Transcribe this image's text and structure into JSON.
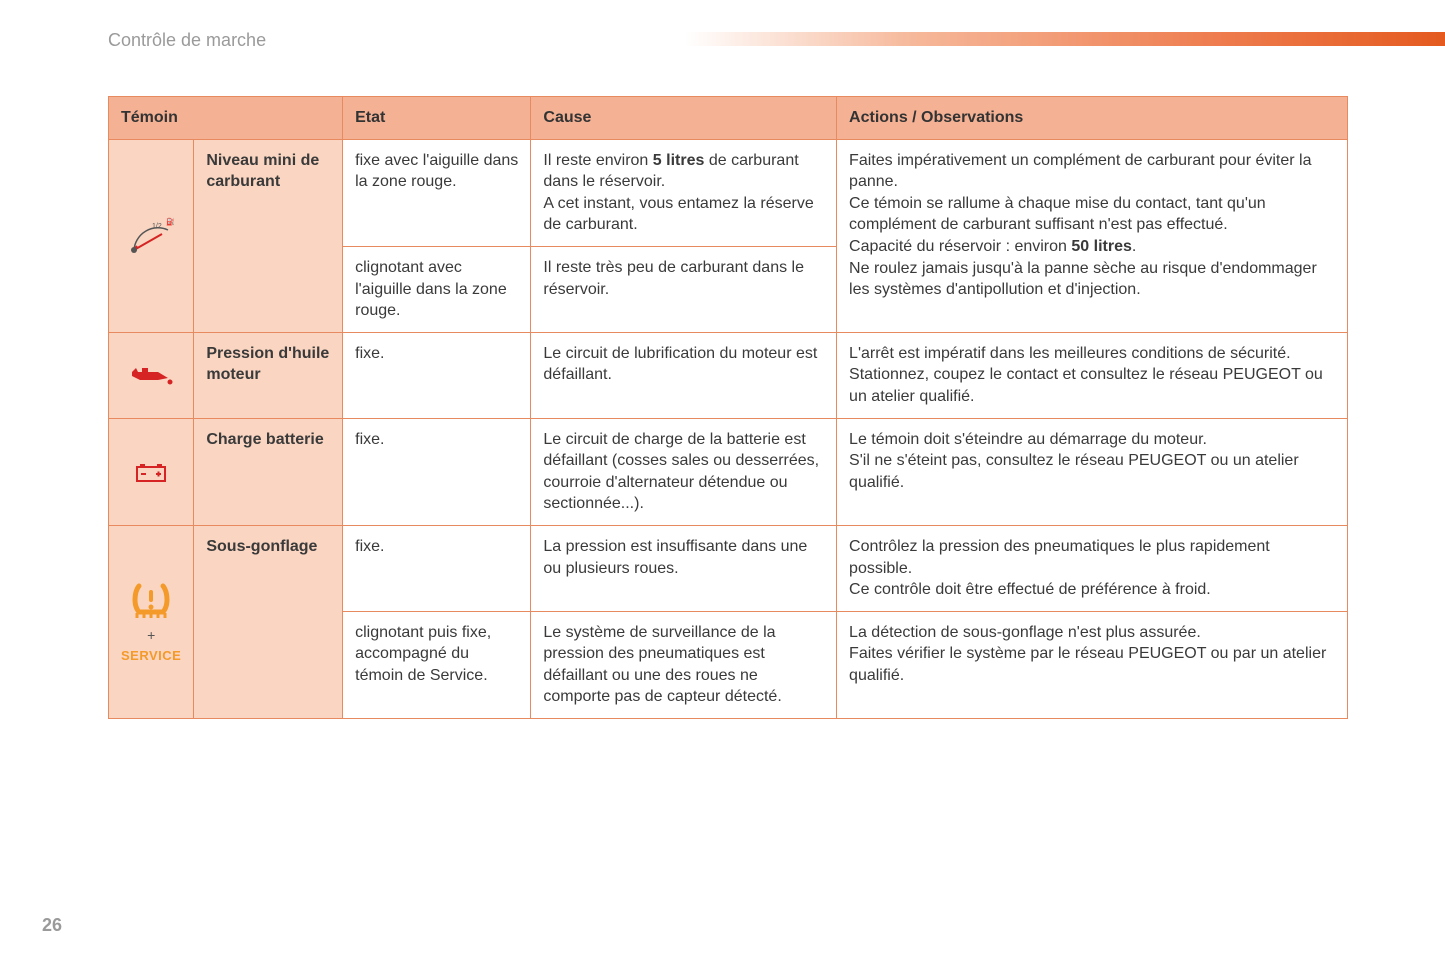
{
  "section_title": "Contrôle de marche",
  "page_number": "26",
  "colors": {
    "border": "#e78a5f",
    "header_bg": "#f4b194",
    "peach_bg": "#fad6c2",
    "text": "#3a3a3a",
    "grey": "#9a9a9a",
    "icon_red": "#d62323",
    "icon_orange": "#f49a2a"
  },
  "table": {
    "headers": {
      "temoin": "Témoin",
      "etat": "Etat",
      "cause": "Cause",
      "actions": "Actions / Observations"
    },
    "rows": {
      "fuel": {
        "name": "Niveau mini de carburant",
        "etat1": "fixe avec l'aiguille dans la zone rouge.",
        "cause1_pre": "Il reste environ ",
        "cause1_bold": "5 litres",
        "cause1_post": " de carburant dans le réservoir.\nA cet instant, vous entamez la réserve de carburant.",
        "etat2": "clignotant avec l'aiguille dans la zone rouge.",
        "cause2": "Il reste très peu de carburant dans le réservoir.",
        "actions_pre": "Faites impérativement un complément de carburant pour éviter la panne.\nCe témoin se rallume à chaque mise du contact, tant qu'un complément de carburant suffisant n'est pas effectué.\nCapacité du réservoir : environ ",
        "actions_bold": "50 litres",
        "actions_post": ".\nNe roulez jamais jusqu'à la panne sèche au risque d'endommager les systèmes d'antipollution et d'injection."
      },
      "oil": {
        "name": "Pression d'huile moteur",
        "etat": "fixe.",
        "cause": "Le circuit de lubrification du moteur est défaillant.",
        "actions": "L'arrêt est impératif dans les meilleures conditions de sécurité.\nStationnez, coupez le contact et consultez le réseau PEUGEOT ou un atelier qualifié."
      },
      "battery": {
        "name": "Charge batterie",
        "etat": "fixe.",
        "cause": "Le circuit de charge de la batterie est défaillant (cosses sales ou desserrées, courroie d'alternateur détendue ou sectionnée...).",
        "actions": "Le témoin doit s'éteindre au démarrage du moteur.\nS'il ne s'éteint pas, consultez le réseau PEUGEOT ou un atelier qualifié."
      },
      "tyre": {
        "name": "Sous-gonflage",
        "plus": "+",
        "service": "SERVICE",
        "etat1": "fixe.",
        "cause1": "La pression est insuffisante dans une ou plusieurs roues.",
        "actions1": "Contrôlez la pression des pneumatiques le plus rapidement possible.\nCe contrôle doit être effectué de préférence à froid.",
        "etat2": "clignotant puis fixe, accompagné du témoin de Service.",
        "cause2": "Le système de surveillance de la pression des pneumatiques est défaillant ou une des roues ne comporte pas de capteur détecté.",
        "actions2": "La détection de sous-gonflage n'est plus assurée.\nFaites vérifier le système par le réseau PEUGEOT ou par un atelier qualifié."
      }
    }
  }
}
